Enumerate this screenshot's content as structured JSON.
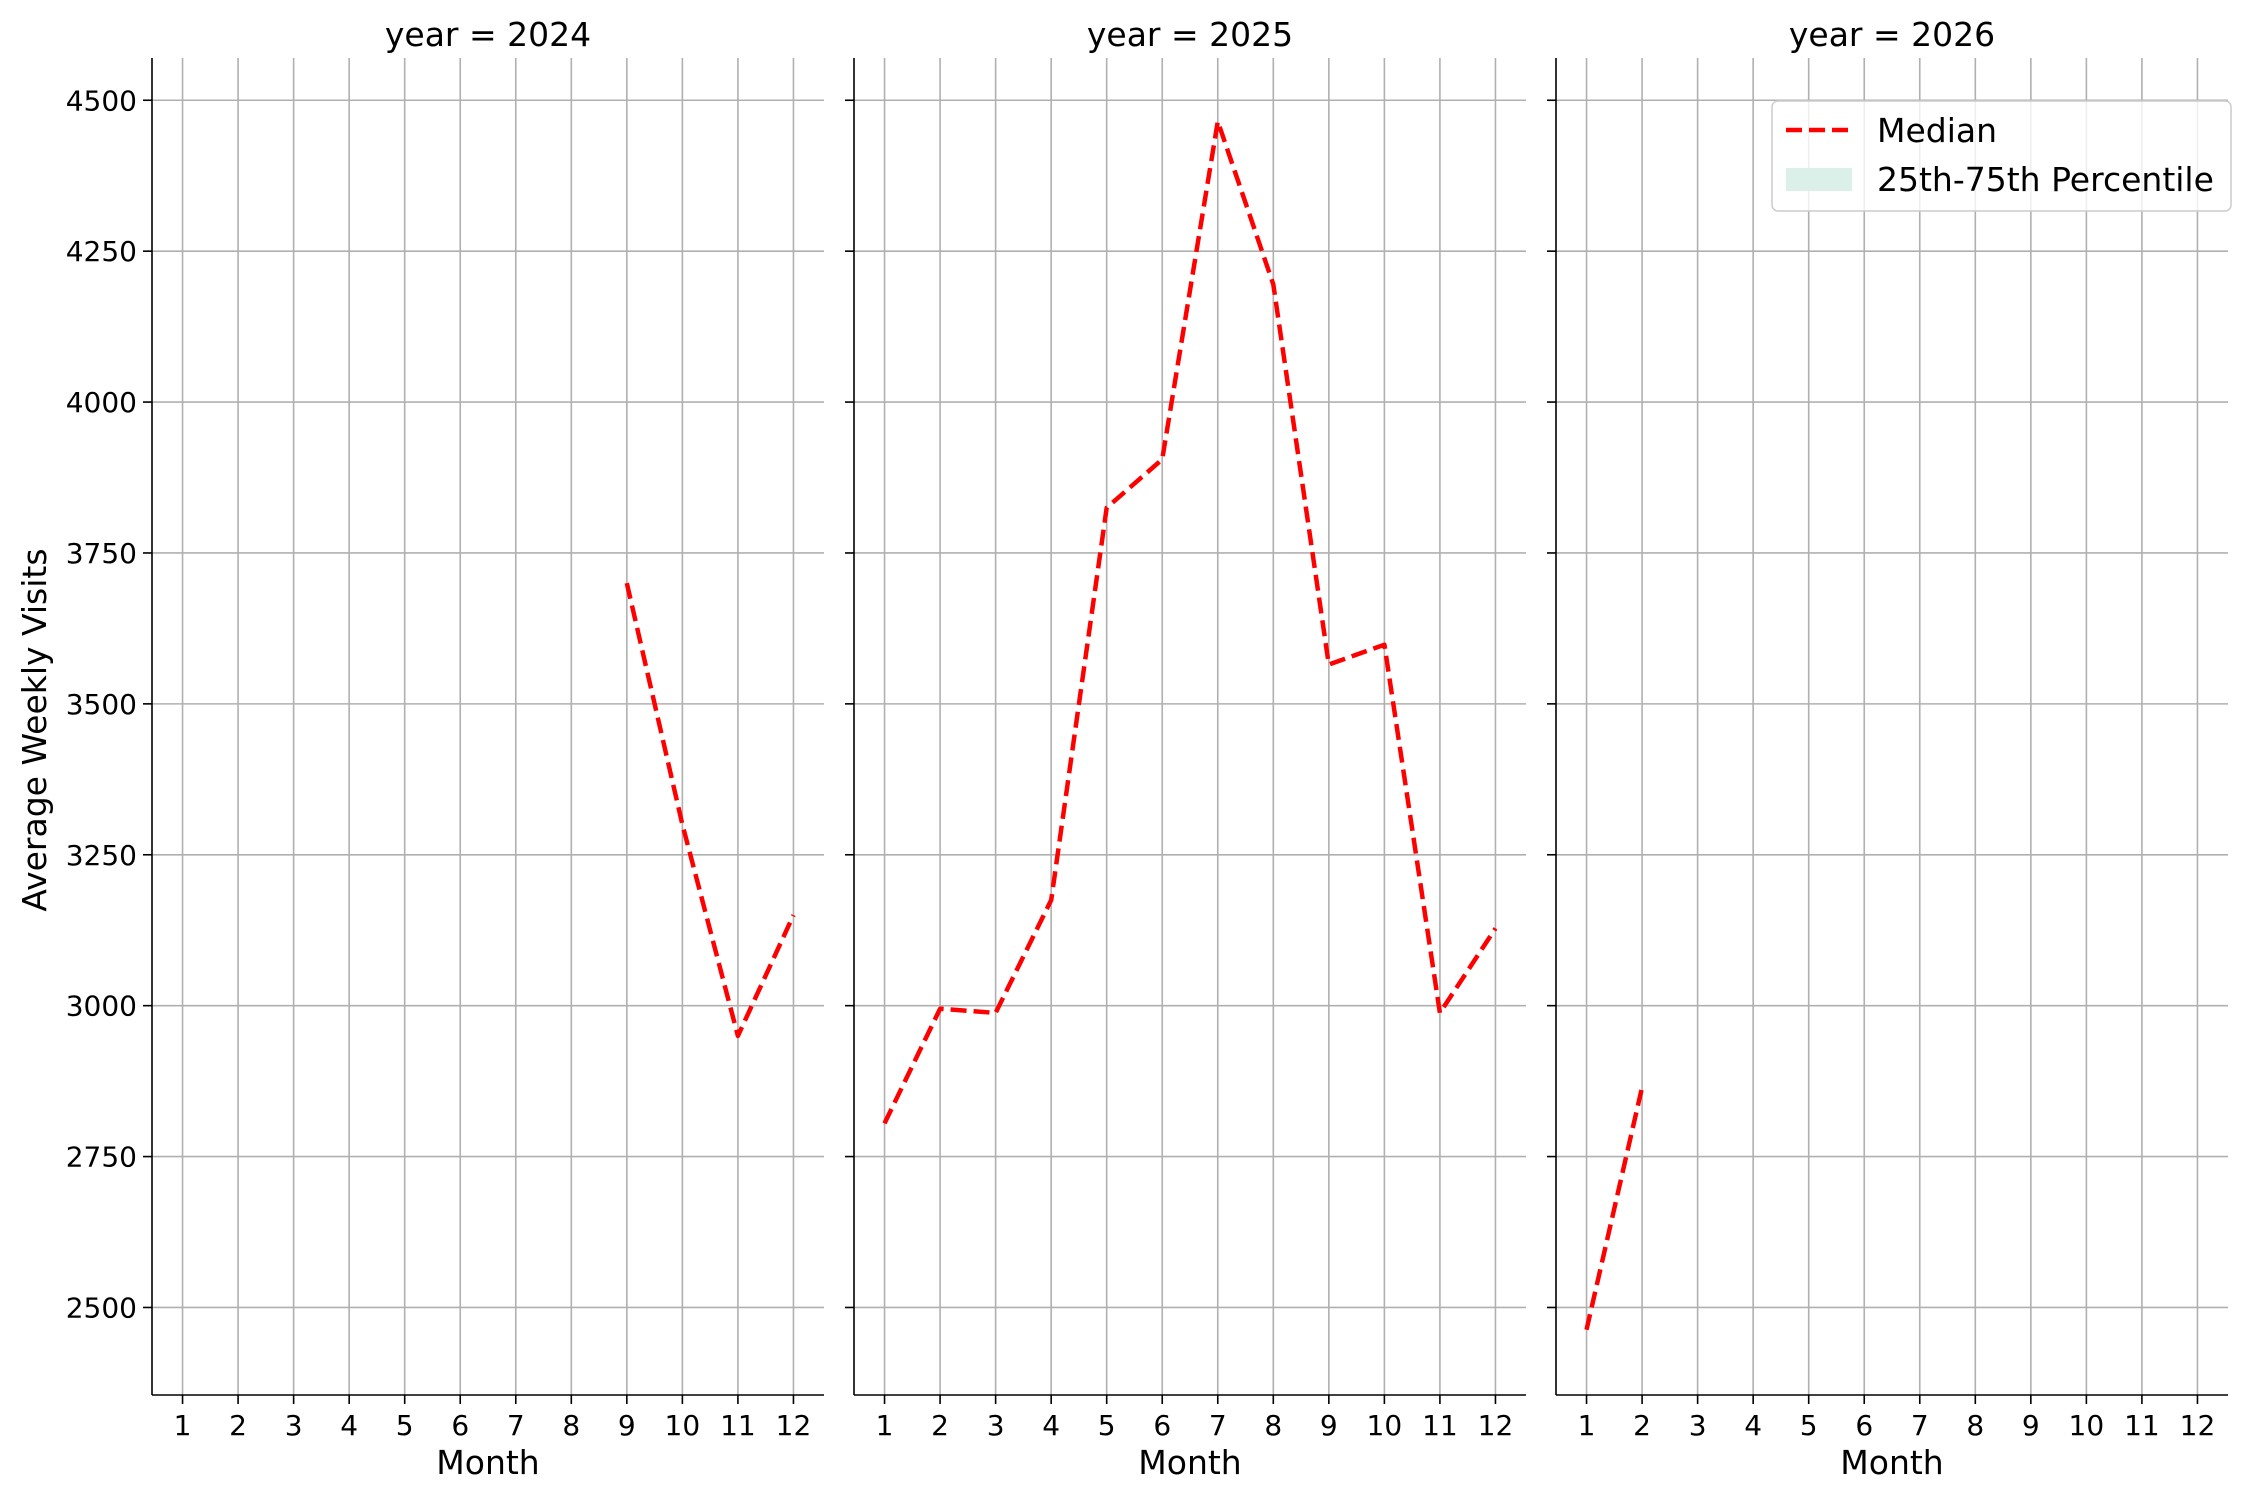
{
  "chart_data": {
    "type": "line",
    "ylabel": "Average Weekly Visits",
    "xlabel": "Month",
    "x_ticks": [
      1,
      2,
      3,
      4,
      5,
      6,
      7,
      8,
      9,
      10,
      11,
      12
    ],
    "y_ticks": [
      2500,
      2750,
      3000,
      3250,
      3500,
      3750,
      4000,
      4250,
      4500
    ],
    "ylim": [
      2355,
      4570
    ],
    "xlim": [
      0.45,
      12.55
    ],
    "grid": true,
    "legend": {
      "placement": "top-right of last panel",
      "entries": [
        {
          "label": "Median",
          "color": "#ff0000",
          "style": "dashed"
        },
        {
          "label": "25th-75th Percentile",
          "color": "#dcf0ea",
          "style": "fill"
        }
      ]
    },
    "panels": [
      {
        "title": "year = 2024",
        "series": [
          {
            "name": "Median",
            "x": [
              9,
              10,
              11,
              12
            ],
            "y": [
              3700,
              3300,
              2950,
              3150
            ]
          }
        ]
      },
      {
        "title": "year = 2025",
        "series": [
          {
            "name": "Median",
            "x": [
              1,
              2,
              3,
              4,
              5,
              6,
              7,
              8,
              9,
              10,
              11,
              12
            ],
            "y": [
              2805,
              2995,
              2988,
              3175,
              3825,
              3905,
              4465,
              4195,
              3565,
              3598,
              2988,
              3128
            ]
          }
        ]
      },
      {
        "title": "year = 2026",
        "series": [
          {
            "name": "Median",
            "x": [
              1,
              2
            ],
            "y": [
              2463,
              2865
            ]
          }
        ]
      }
    ]
  },
  "colors": {
    "median": "#ff0000",
    "band": "#dcf0ea",
    "grid": "#b0b0b0",
    "axis": "#000000"
  }
}
